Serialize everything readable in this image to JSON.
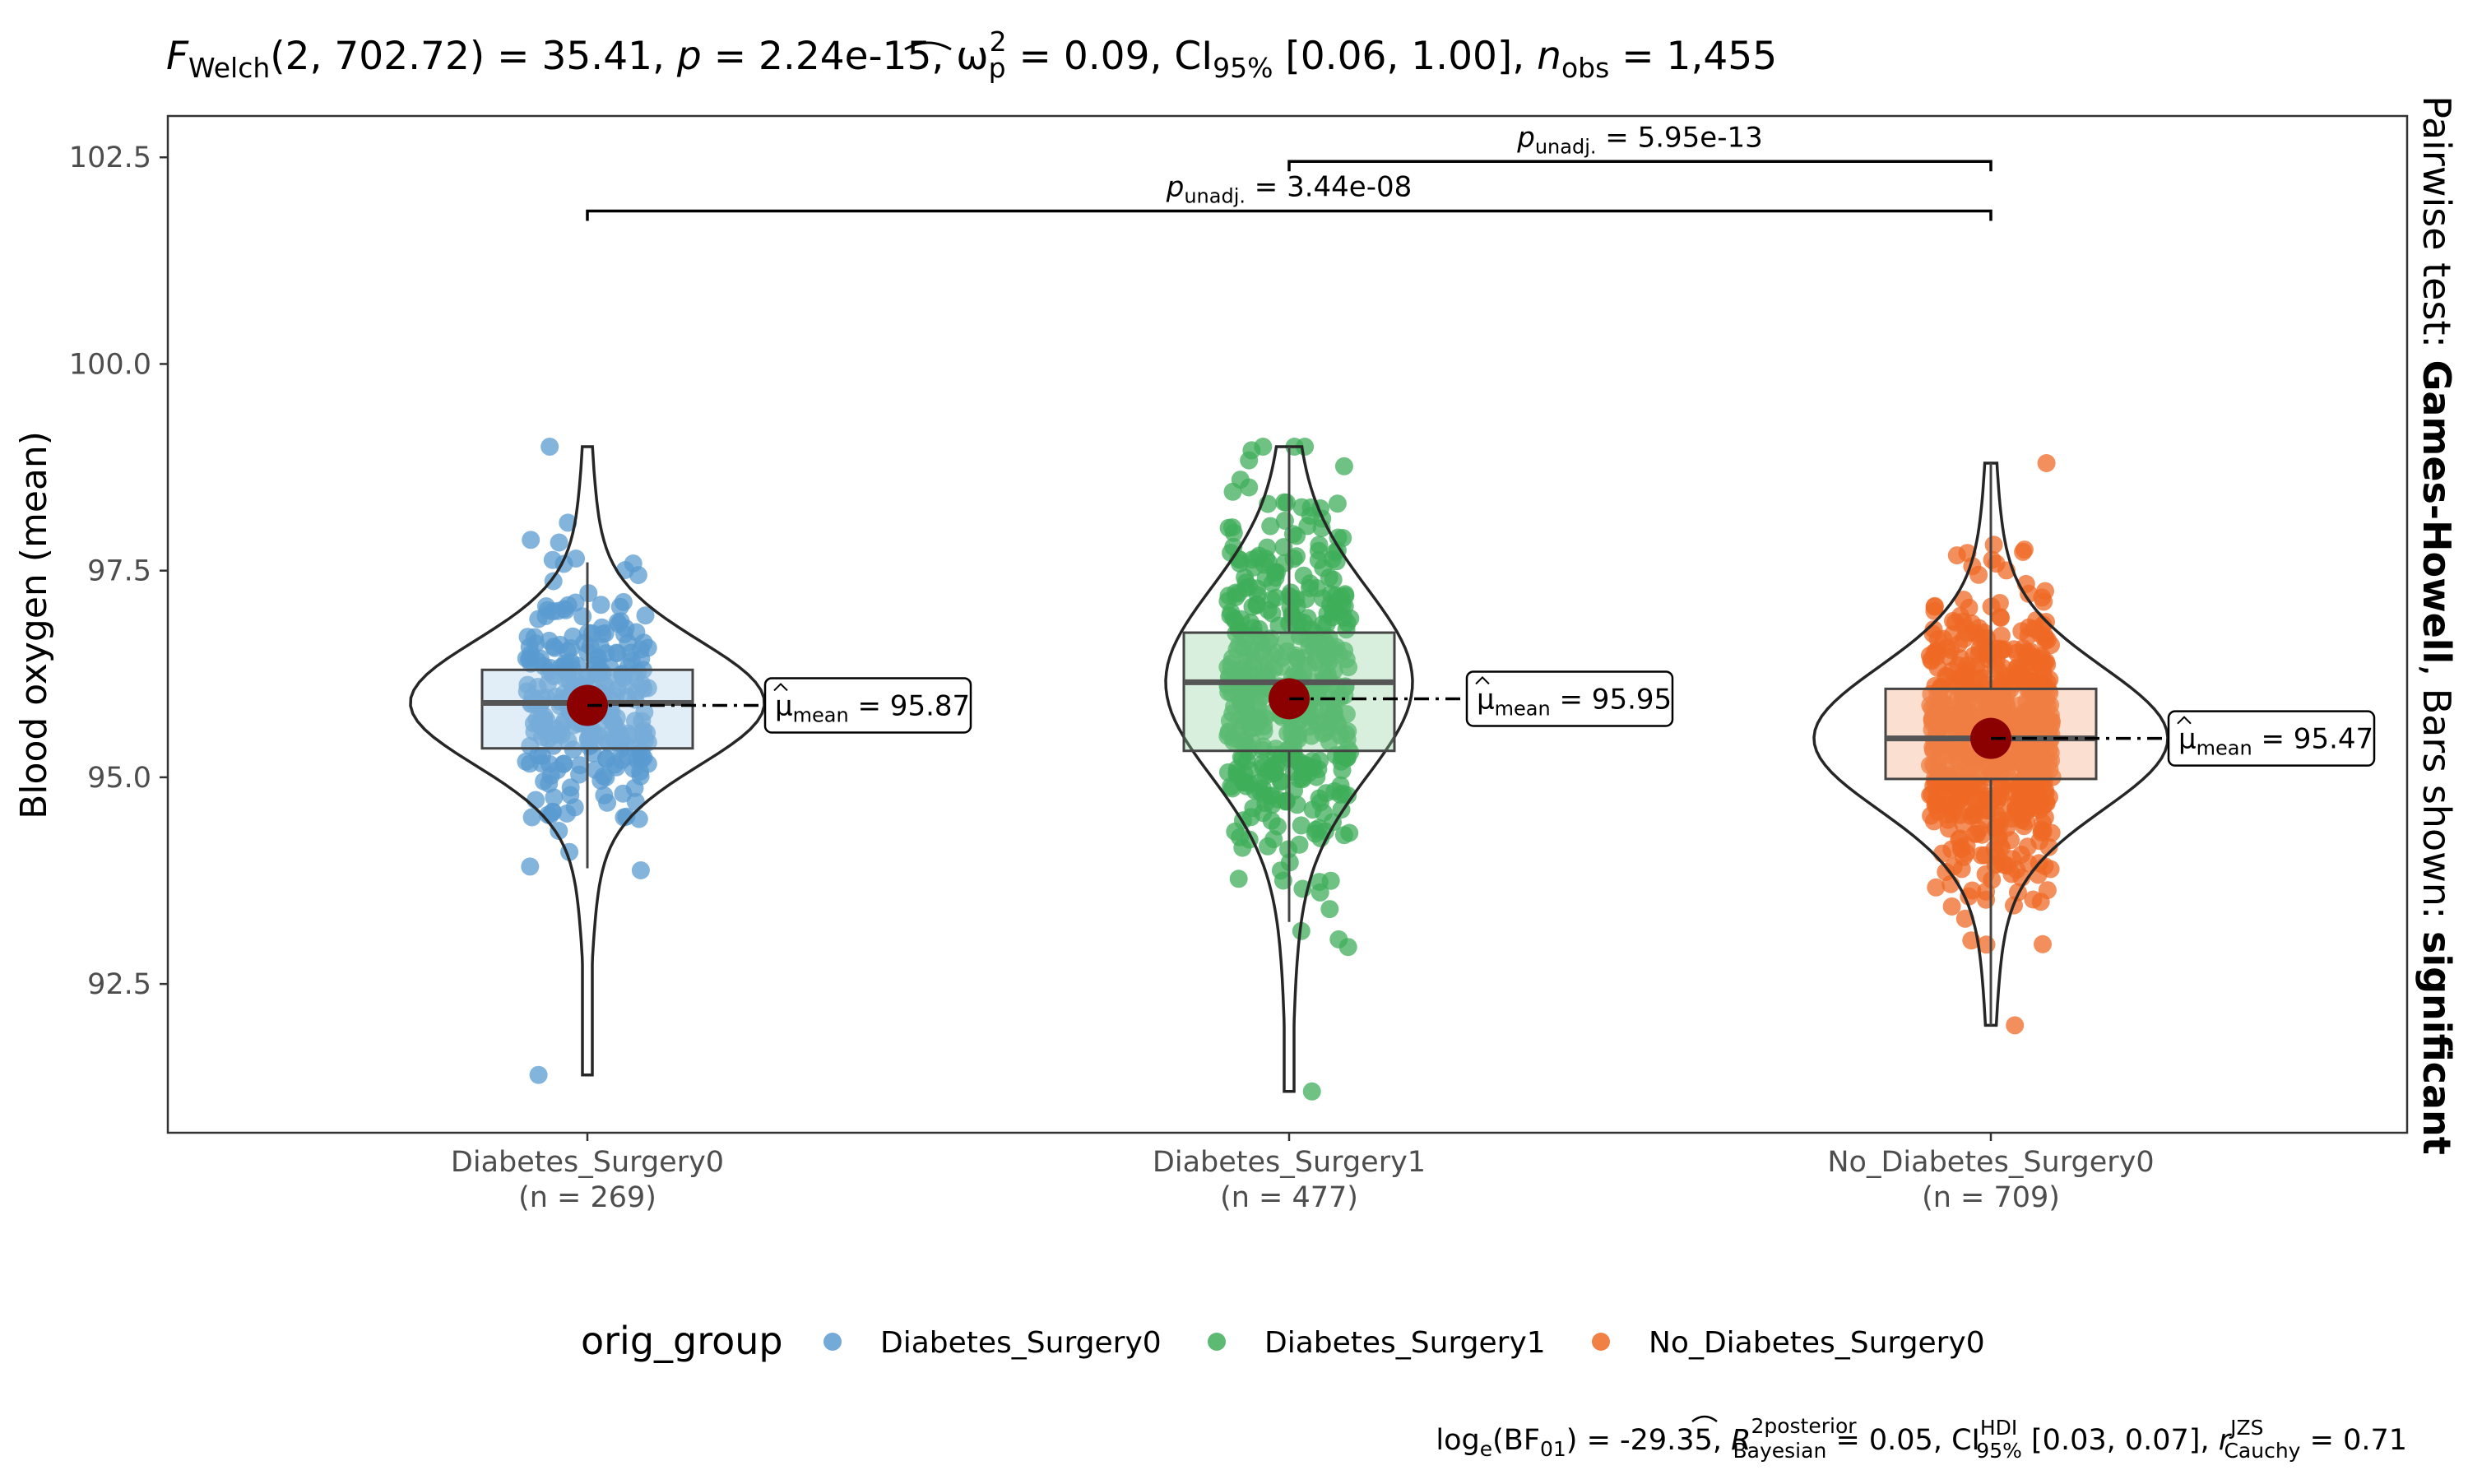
{
  "chart_data": {
    "type": "violin-box-scatter",
    "title": {
      "stat_symbol": "F",
      "stat_sub": "Welch",
      "df": "(2, 702.72)",
      "stat_value": "35.41",
      "p": "2.24e-15",
      "effect_symbol": "ω",
      "effect_sub": "p",
      "effect_sup": "2",
      "effect_value": "0.09",
      "ci_label": "CI",
      "ci_sub": "95%",
      "ci": "[0.06, 1.00]",
      "n_symbol": "n",
      "n_sub": "obs",
      "n_obs": "1,455"
    },
    "subtitle_right": {
      "prefix": "Pairwise test: ",
      "test": "Games-Howell",
      "middle": ", Bars shown: ",
      "shown": "significant"
    },
    "caption": {
      "log_label": "log",
      "log_sub": "e",
      "bf_label": "(BF",
      "bf_sub": "01",
      "bf_close": ")",
      "bf_value": "-29.35",
      "r2_symbol": "R",
      "r2_sup": "2",
      "r2_sup_word": "posterior",
      "r2_sub": "Bayesian",
      "r2_value": "0.05",
      "ci_label": "CI",
      "ci_sup": "HDI",
      "ci_sub": "95%",
      "ci": "[0.03, 0.07]",
      "r_symbol": "r",
      "r_sup": "JZS",
      "r_sub": "Cauchy",
      "r_value": "0.71"
    },
    "ylabel": "Blood oxygen (mean)",
    "ylim": [
      90.7,
      103.0
    ],
    "yticks": [
      92.5,
      95.0,
      97.5,
      100.0,
      102.5
    ],
    "ytick_labels": [
      "92.5",
      "95.0",
      "97.5",
      "100.0",
      "102.5"
    ],
    "groups": [
      {
        "name": "Diabetes_Surgery0",
        "n_label": "(n = 269)",
        "n": 269,
        "color": "#5a9bd0",
        "box_fill": "#a9cce9",
        "mean": 95.87,
        "mean_label": "95.87",
        "median": 95.9,
        "q1": 95.35,
        "q3": 96.3,
        "whisker_low": 93.9,
        "whisker_high": 97.6,
        "min": 91.4,
        "max": 99.0,
        "jitter_seed": 11
      },
      {
        "name": "Diabetes_Surgery1",
        "n_label": "(n = 477)",
        "n": 477,
        "color": "#3fae5a",
        "box_fill": "#8fd19e",
        "mean": 95.95,
        "mean_label": "95.95",
        "median": 96.15,
        "q1": 95.32,
        "q3": 96.75,
        "whisker_low": 93.25,
        "whisker_high": 99.0,
        "min": 91.2,
        "max": 99.0,
        "jitter_seed": 23
      },
      {
        "name": "No_Diabetes_Surgery0",
        "n_label": "(n = 709)",
        "n": 709,
        "color": "#ef6a25",
        "box_fill": "#f4a57a",
        "mean": 95.47,
        "mean_label": "95.47",
        "median": 95.47,
        "q1": 94.98,
        "q3": 96.07,
        "whisker_low": 92.0,
        "whisker_high": 98.8,
        "min": 92.0,
        "max": 98.8,
        "jitter_seed": 37
      }
    ],
    "mean_marker_color": "#8b0000",
    "mean_box_prefix": "μ",
    "mean_box_sub": "mean",
    "pairwise": [
      {
        "from": 0,
        "to": 2,
        "y": 101.85,
        "p_symbol": "p",
        "p_sub": "unadj.",
        "p_value": "3.44e-08"
      },
      {
        "from": 1,
        "to": 2,
        "y": 102.45,
        "p_symbol": "p",
        "p_sub": "unadj.",
        "p_value": "5.95e-13"
      }
    ],
    "legend": {
      "title": "orig_group",
      "position": "bottom",
      "entries": [
        "Diabetes_Surgery0",
        "Diabetes_Surgery1",
        "No_Diabetes_Surgery0"
      ]
    },
    "grid": false
  }
}
